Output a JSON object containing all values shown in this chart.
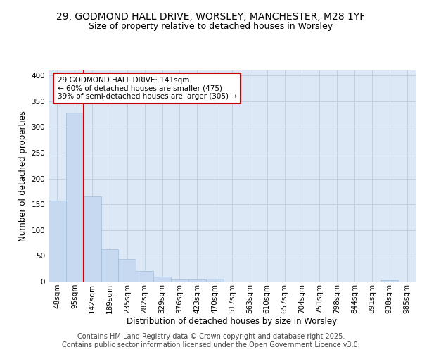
{
  "title_line1": "29, GODMOND HALL DRIVE, WORSLEY, MANCHESTER, M28 1YF",
  "title_line2": "Size of property relative to detached houses in Worsley",
  "xlabel": "Distribution of detached houses by size in Worsley",
  "ylabel": "Number of detached properties",
  "bar_labels": [
    "48sqm",
    "95sqm",
    "142sqm",
    "189sqm",
    "235sqm",
    "282sqm",
    "329sqm",
    "376sqm",
    "423sqm",
    "470sqm",
    "517sqm",
    "563sqm",
    "610sqm",
    "657sqm",
    "704sqm",
    "751sqm",
    "798sqm",
    "844sqm",
    "891sqm",
    "938sqm",
    "985sqm"
  ],
  "bar_values": [
    157,
    328,
    165,
    63,
    44,
    20,
    10,
    4,
    4,
    5,
    0,
    0,
    0,
    0,
    0,
    0,
    0,
    0,
    0,
    3,
    0
  ],
  "bar_color": "#c6d9f0",
  "bar_edgecolor": "#a0bcd8",
  "red_line_index": 2,
  "annotation_text": "29 GODMOND HALL DRIVE: 141sqm\n← 60% of detached houses are smaller (475)\n39% of semi-detached houses are larger (305) →",
  "annotation_box_facecolor": "#ffffff",
  "annotation_box_edgecolor": "#cc0000",
  "red_line_color": "#cc0000",
  "grid_color": "#c0d0e0",
  "background_color": "#dce8f5",
  "footer_text": "Contains HM Land Registry data © Crown copyright and database right 2025.\nContains public sector information licensed under the Open Government Licence v3.0.",
  "ylim": [
    0,
    410
  ],
  "yticks": [
    0,
    50,
    100,
    150,
    200,
    250,
    300,
    350,
    400
  ],
  "title_fontsize": 10,
  "subtitle_fontsize": 9,
  "axis_label_fontsize": 8.5,
  "tick_fontsize": 7.5,
  "annotation_fontsize": 7.5,
  "footer_fontsize": 7
}
